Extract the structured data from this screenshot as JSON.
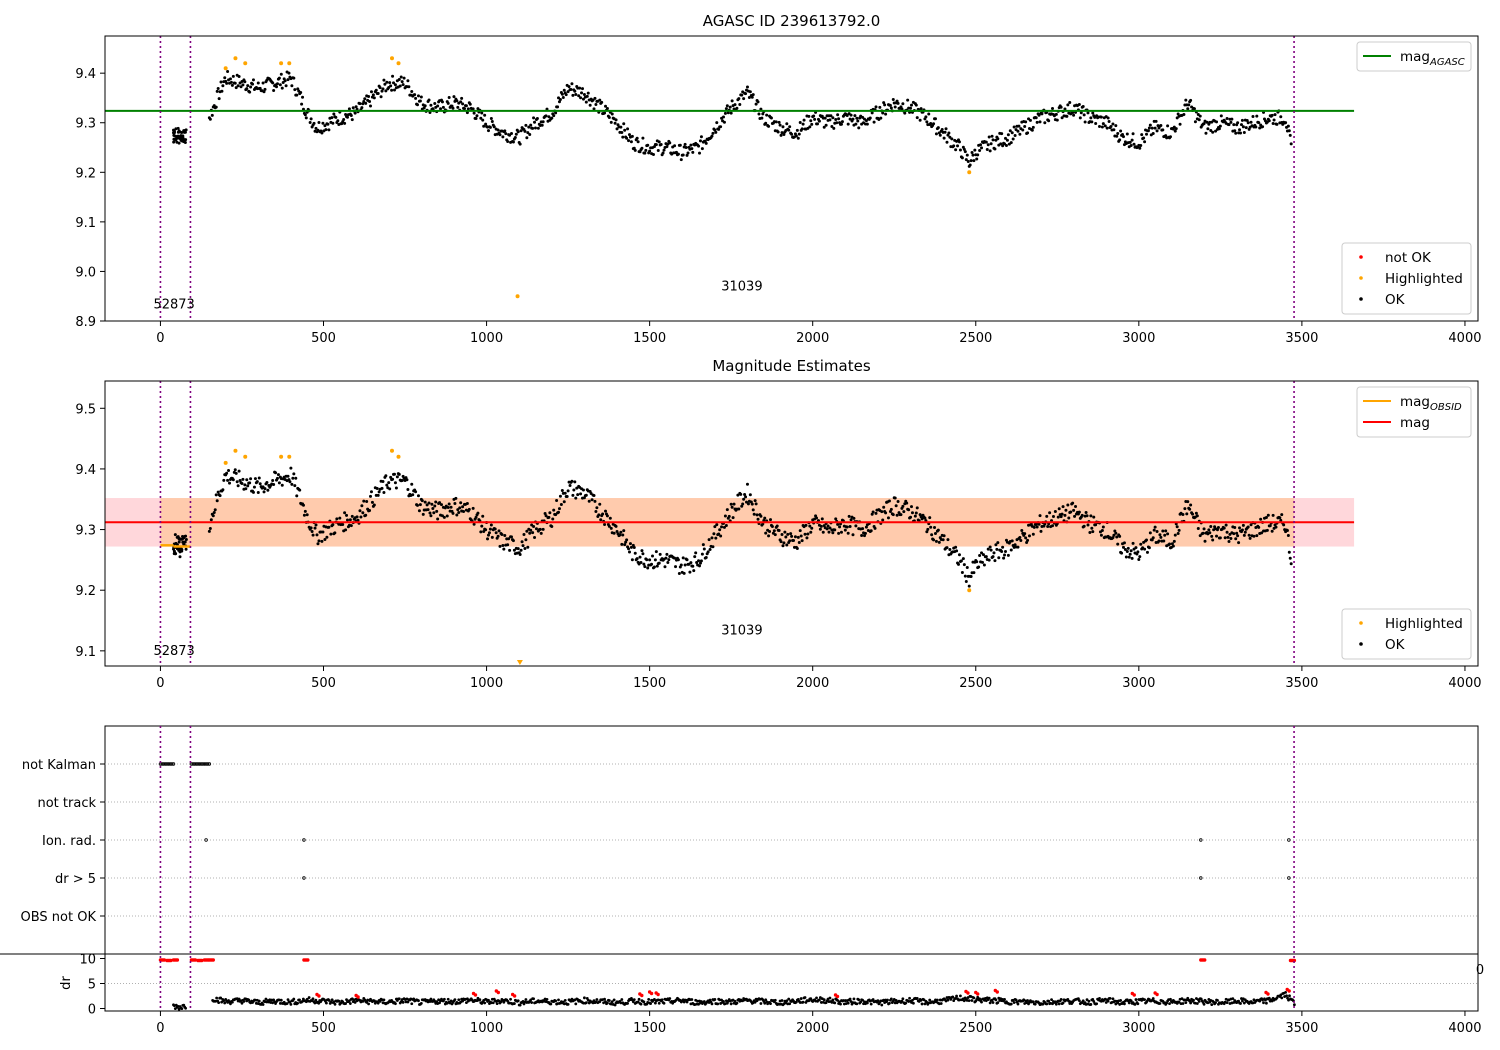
{
  "chart_data": [
    {
      "type": "scatter",
      "title": "AGASC ID 239613792.0",
      "xlim": [
        -170,
        4040
      ],
      "ylim": [
        8.9,
        9.475
      ],
      "xticks": [
        0,
        500,
        1000,
        1500,
        2000,
        2500,
        3000,
        3500,
        4000
      ],
      "yticks": [
        8.9,
        9.0,
        9.1,
        9.2,
        9.3,
        9.4
      ],
      "xlabel": "",
      "ylabel": "",
      "vlines": [
        0,
        92,
        3476
      ],
      "hlines": [
        {
          "name": "mag_AGASC",
          "y": 9.324,
          "x_range": [
            -170,
            3660
          ],
          "color": "#008000"
        }
      ],
      "annotations": [
        {
          "text": "52873",
          "x": 42,
          "y": 8.925
        },
        {
          "text": "31039",
          "x": 1783,
          "y": 8.962
        }
      ],
      "legends": [
        {
          "position": "top-right",
          "entries": [
            {
              "label": "mag",
              "sub": "AGASC",
              "kind": "line",
              "color": "#008000"
            }
          ]
        },
        {
          "position": "bottom-right",
          "entries": [
            {
              "label": "not OK",
              "kind": "dot",
              "color": "#ff0000"
            },
            {
              "label": "Highlighted",
              "kind": "dot",
              "color": "#ffa500"
            },
            {
              "label": "OK",
              "kind": "dot",
              "color": "#000000"
            }
          ]
        }
      ],
      "series": [
        {
          "name": "OK",
          "color": "#000000",
          "x": [
            40,
            60,
            80,
            150,
            180,
            200,
            250,
            300,
            350,
            400,
            430,
            450,
            480,
            550,
            600,
            650,
            700,
            750,
            800,
            850,
            900,
            950,
            1000,
            1050,
            1100,
            1150,
            1200,
            1250,
            1300,
            1350,
            1400,
            1450,
            1500,
            1550,
            1600,
            1650,
            1700,
            1750,
            1800,
            1850,
            1900,
            1950,
            2000,
            2050,
            2100,
            2150,
            2200,
            2250,
            2300,
            2350,
            2400,
            2450,
            2480,
            2500,
            2550,
            2600,
            2650,
            2700,
            2750,
            2800,
            2850,
            2900,
            2950,
            3000,
            3050,
            3100,
            3150,
            3200,
            3250,
            3300,
            3350,
            3400,
            3450,
            3470
          ],
          "values": [
            9.28,
            9.27,
            9.28,
            9.31,
            9.36,
            9.39,
            9.38,
            9.37,
            9.38,
            9.39,
            9.35,
            9.32,
            9.29,
            9.31,
            9.32,
            9.35,
            9.38,
            9.38,
            9.34,
            9.33,
            9.34,
            9.33,
            9.3,
            9.28,
            9.27,
            9.3,
            9.32,
            9.37,
            9.36,
            9.33,
            9.3,
            9.26,
            9.25,
            9.25,
            9.24,
            9.25,
            9.29,
            9.33,
            9.36,
            9.31,
            9.29,
            9.28,
            9.31,
            9.3,
            9.31,
            9.3,
            9.32,
            9.34,
            9.33,
            9.31,
            9.28,
            9.25,
            9.22,
            9.24,
            9.26,
            9.27,
            9.29,
            9.31,
            9.32,
            9.33,
            9.31,
            9.3,
            9.27,
            9.26,
            9.29,
            9.28,
            9.34,
            9.29,
            9.3,
            9.29,
            9.3,
            9.31,
            9.31,
            9.24
          ]
        },
        {
          "name": "Highlighted",
          "color": "#ffa500",
          "x": [
            200,
            230,
            260,
            370,
            395,
            710,
            730,
            1095,
            2480
          ],
          "values": [
            9.41,
            9.43,
            9.42,
            9.42,
            9.42,
            9.43,
            9.42,
            8.95,
            9.2
          ]
        },
        {
          "name": "not OK",
          "color": "#ff0000",
          "x": [],
          "values": []
        }
      ]
    },
    {
      "type": "scatter",
      "title": "Magnitude Estimates",
      "xlim": [
        -170,
        4040
      ],
      "ylim": [
        9.075,
        9.545
      ],
      "xticks": [
        0,
        500,
        1000,
        1500,
        2000,
        2500,
        3000,
        3500,
        4000
      ],
      "yticks": [
        9.1,
        9.2,
        9.3,
        9.4,
        9.5
      ],
      "xlabel": "",
      "ylabel": "",
      "vlines": [
        0,
        92,
        3476
      ],
      "hlines": [
        {
          "name": "mag",
          "y": 9.312,
          "x_range": [
            -170,
            3660
          ],
          "color": "#ff0000"
        }
      ],
      "bands": [
        {
          "y_range": [
            9.272,
            9.352
          ],
          "x_range": [
            -170,
            3660
          ],
          "color": "#ffb0b8"
        },
        {
          "y_range": [
            9.272,
            9.352
          ],
          "x_range": [
            0,
            3476
          ],
          "color": "#ffc080"
        }
      ],
      "obsid_segments": [
        {
          "x_range": [
            0,
            40
          ],
          "y": 9.274
        },
        {
          "x_range": [
            40,
            92
          ],
          "y": 9.272
        }
      ],
      "annotations": [
        {
          "text": "52873",
          "x": 42,
          "y": 9.093
        },
        {
          "text": "31039",
          "x": 1783,
          "y": 9.127
        }
      ],
      "legends": [
        {
          "position": "top-right",
          "entries": [
            {
              "label": "mag",
              "sub": "OBSID",
              "kind": "line",
              "color": "#ffa500"
            },
            {
              "label": "mag",
              "kind": "line",
              "color": "#ff0000"
            }
          ]
        },
        {
          "position": "bottom-right",
          "entries": [
            {
              "label": "Highlighted",
              "kind": "dot",
              "color": "#ffa500"
            },
            {
              "label": "OK",
              "kind": "dot",
              "color": "#000000"
            }
          ]
        }
      ],
      "series": [
        {
          "name": "OK",
          "color": "#000000",
          "x": [
            40,
            60,
            80,
            150,
            180,
            200,
            250,
            300,
            350,
            400,
            430,
            450,
            480,
            550,
            600,
            650,
            700,
            750,
            800,
            850,
            900,
            950,
            1000,
            1050,
            1100,
            1150,
            1200,
            1250,
            1300,
            1350,
            1400,
            1450,
            1500,
            1550,
            1600,
            1650,
            1700,
            1750,
            1800,
            1850,
            1900,
            1950,
            2000,
            2050,
            2100,
            2150,
            2200,
            2250,
            2300,
            2350,
            2400,
            2450,
            2480,
            2500,
            2550,
            2600,
            2650,
            2700,
            2750,
            2800,
            2850,
            2900,
            2950,
            3000,
            3050,
            3100,
            3150,
            3200,
            3250,
            3300,
            3350,
            3400,
            3450,
            3470
          ],
          "values": [
            9.28,
            9.27,
            9.28,
            9.31,
            9.36,
            9.39,
            9.38,
            9.37,
            9.38,
            9.39,
            9.35,
            9.32,
            9.29,
            9.31,
            9.32,
            9.35,
            9.38,
            9.38,
            9.34,
            9.33,
            9.34,
            9.33,
            9.3,
            9.28,
            9.27,
            9.3,
            9.32,
            9.37,
            9.36,
            9.33,
            9.3,
            9.26,
            9.25,
            9.25,
            9.24,
            9.25,
            9.29,
            9.33,
            9.36,
            9.31,
            9.29,
            9.28,
            9.31,
            9.3,
            9.31,
            9.3,
            9.32,
            9.34,
            9.33,
            9.31,
            9.28,
            9.25,
            9.22,
            9.24,
            9.26,
            9.27,
            9.29,
            9.31,
            9.32,
            9.33,
            9.31,
            9.3,
            9.27,
            9.26,
            9.29,
            9.28,
            9.34,
            9.29,
            9.3,
            9.29,
            9.3,
            9.31,
            9.31,
            9.24
          ]
        },
        {
          "name": "Highlighted",
          "color": "#ffa500",
          "x": [
            200,
            230,
            260,
            370,
            395,
            710,
            730,
            2480
          ],
          "values": [
            9.41,
            9.43,
            9.42,
            9.42,
            9.42,
            9.43,
            9.42,
            9.2
          ]
        }
      ]
    },
    {
      "type": "scatter",
      "title": "",
      "xlim": [
        -170,
        4040
      ],
      "xticks": [
        0,
        500,
        1000,
        1500,
        2000,
        2500,
        3000,
        3500,
        4000
      ],
      "vlines": [
        0,
        92,
        3476
      ],
      "flag_categories": [
        "not Kalman",
        "not track",
        "Ion. rad.",
        "dr > 5",
        "OBS not OK"
      ],
      "flags": [
        {
          "name": "not Kalman",
          "x": [
            0,
            5,
            10,
            15,
            20,
            25,
            30,
            35,
            40,
            95,
            100,
            105,
            110,
            115,
            120,
            125,
            130,
            135,
            140,
            145,
            150
          ]
        },
        {
          "name": "not track",
          "x": []
        },
        {
          "name": "Ion. rad.",
          "x": [
            140,
            440,
            3190,
            3460
          ]
        },
        {
          "name": "dr > 5",
          "x": [
            440,
            3190,
            3460
          ]
        },
        {
          "name": "OBS not OK",
          "x": []
        }
      ],
      "dr_ylabel": "dr",
      "dr_yticks": [
        0,
        5,
        10
      ],
      "dr_ylim": [
        -0.5,
        10.5
      ],
      "dr_edge_label": "0",
      "dr_series": [
        {
          "name": "dr ok",
          "color": "#000000",
          "x": [
            40,
            60,
            80,
            160,
            200,
            250,
            300,
            350,
            400,
            450,
            500,
            550,
            600,
            650,
            700,
            750,
            800,
            850,
            900,
            950,
            1000,
            1050,
            1100,
            1150,
            1200,
            1250,
            1300,
            1350,
            1400,
            1450,
            1500,
            1550,
            1600,
            1650,
            1700,
            1750,
            1800,
            1850,
            1900,
            1950,
            2000,
            2050,
            2100,
            2150,
            2200,
            2250,
            2300,
            2350,
            2400,
            2450,
            2500,
            2550,
            2600,
            2650,
            2700,
            2750,
            2800,
            2850,
            2900,
            2950,
            3000,
            3050,
            3100,
            3150,
            3200,
            3250,
            3300,
            3350,
            3400,
            3450,
            3480
          ],
          "values": [
            0.5,
            0.3,
            0.6,
            2.0,
            1.4,
            1.6,
            1.2,
            1.5,
            1.3,
            1.7,
            1.5,
            1.2,
            1.6,
            1.4,
            1.3,
            1.6,
            1.2,
            1.5,
            1.4,
            1.7,
            1.3,
            1.6,
            1.2,
            1.5,
            1.4,
            1.3,
            1.6,
            1.4,
            1.2,
            1.5,
            1.3,
            1.4,
            1.6,
            1.2,
            1.5,
            1.3,
            1.6,
            1.4,
            1.2,
            1.5,
            1.8,
            1.6,
            1.3,
            1.5,
            1.2,
            1.4,
            1.6,
            1.3,
            1.5,
            2.1,
            1.8,
            1.6,
            1.4,
            1.3,
            1.2,
            1.4,
            1.5,
            1.3,
            1.6,
            1.2,
            1.4,
            1.5,
            1.3,
            1.6,
            1.4,
            1.2,
            1.5,
            1.3,
            1.6,
            2.8,
            0.8
          ]
        },
        {
          "name": "dr high",
          "color": "#ff0000",
          "x": [
            0,
            20,
            40,
            95,
            115,
            135,
            150,
            440,
            480,
            600,
            960,
            1030,
            1080,
            1470,
            1500,
            1520,
            2070,
            2470,
            2500,
            2560,
            2980,
            3050,
            3190,
            3390,
            3455,
            3465
          ],
          "values": [
            9.7,
            9.6,
            9.7,
            9.7,
            9.6,
            9.7,
            9.7,
            9.7,
            2.8,
            2.6,
            3.0,
            3.5,
            2.8,
            2.9,
            3.3,
            3.1,
            2.7,
            3.4,
            3.2,
            3.6,
            3.0,
            3.1,
            9.7,
            3.2,
            3.8,
            9.6
          ]
        }
      ]
    }
  ]
}
